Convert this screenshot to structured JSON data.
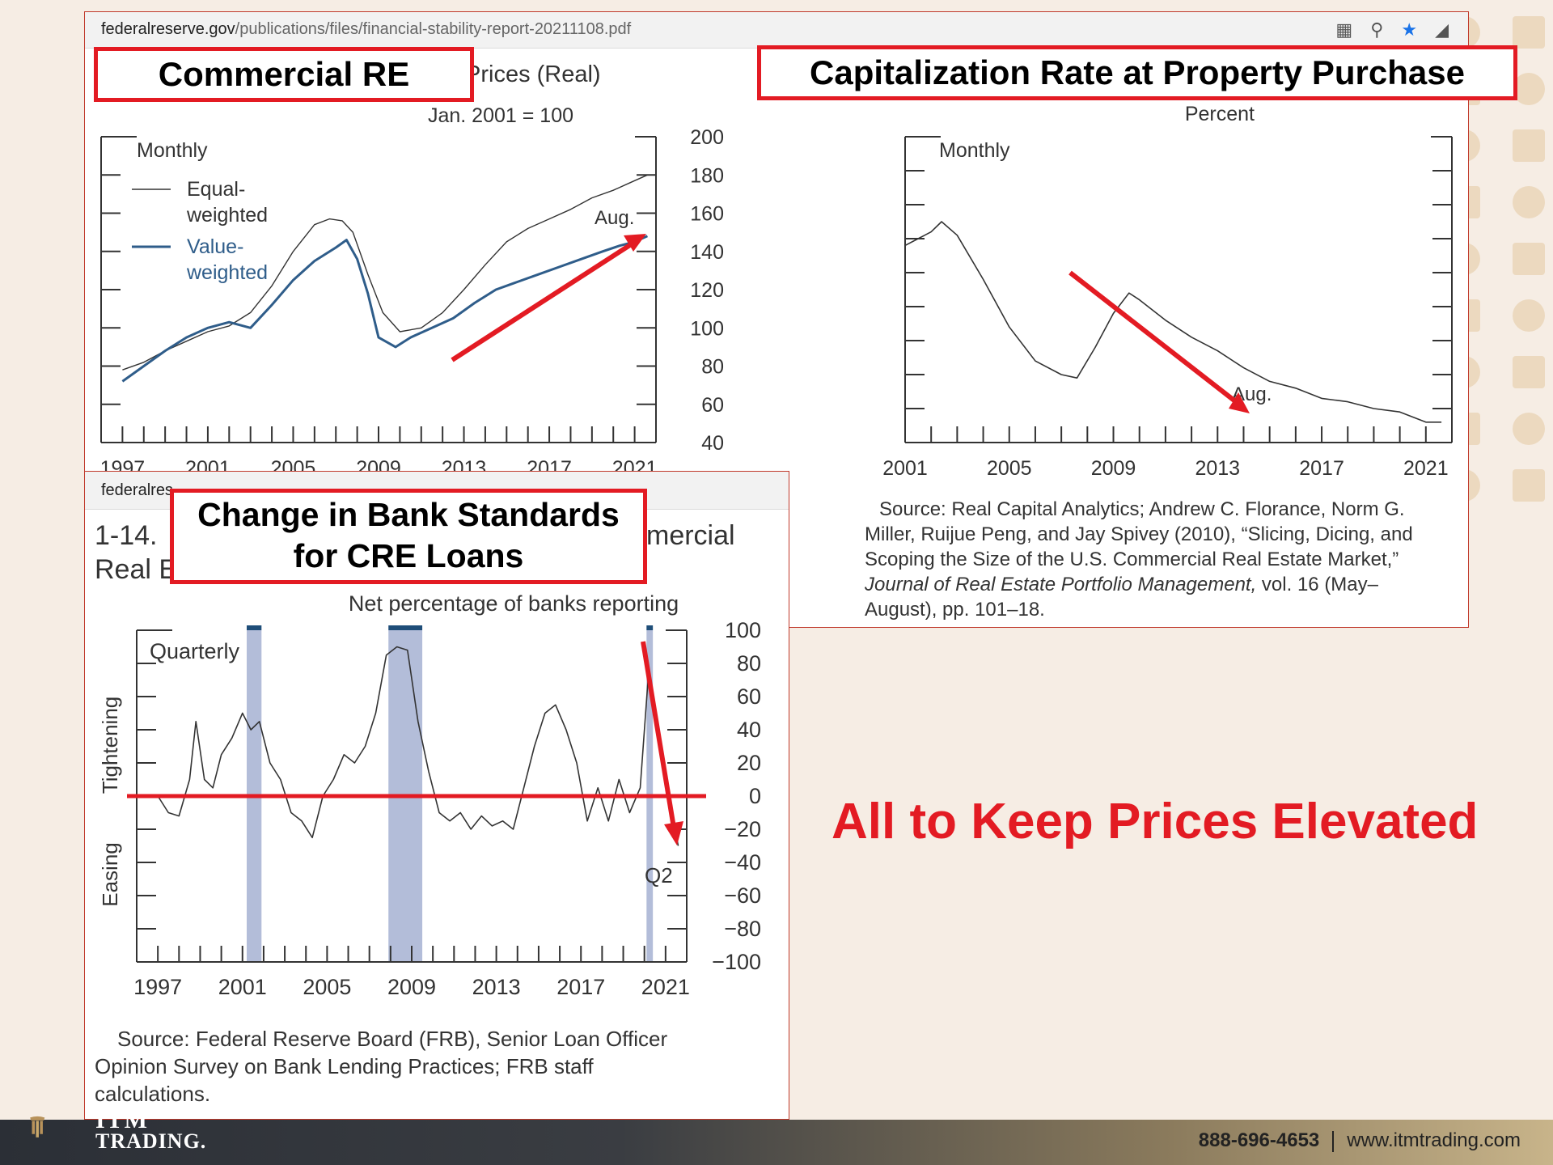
{
  "browser": {
    "url_domain": "federalreserve.gov",
    "url_path": "/publications/files/financial-stability-report-20211108.pdf",
    "url_truncated": "federalres"
  },
  "labels": {
    "commercial_re": "Commercial RE",
    "cap_rate": "Capitalization Rate at Property Purchase",
    "bank_standards_line1": "Change in Bank Standards",
    "bank_standards_line2": "for CRE Loans",
    "headline": "All to Keep Prices Elevated"
  },
  "panel1": {
    "title_fragment": "Prices (Real)",
    "unit": "Jan. 2001 = 100",
    "freq": "Monthly",
    "legend_equal": [
      "Equal-",
      "weighted"
    ],
    "legend_value": [
      "Value-",
      "weighted"
    ],
    "aug": "Aug."
  },
  "panel2": {
    "unit": "Percent",
    "freq": "Monthly",
    "aug": "Aug.",
    "source_lines": [
      "Source: Real Capital Analytics; Andrew C. Florance, Norm G.",
      "Miller, Ruijue Peng, and Jay Spivey (2010), “Slicing, Dicing, and",
      "Scoping the Size of the U.S. Commercial Real Estate Market,”"
    ],
    "source_italic": "Journal of Real Estate Portfolio Management,",
    "source_tail": " vol. 16 (May–",
    "source_last": "August), pp. 101–18."
  },
  "panel3": {
    "fig_prefix_1": "1-14.",
    "fig_prefix_2": "Real E",
    "fig_suffix": "mercial",
    "unit": "Net percentage of banks reporting",
    "freq": "Quarterly",
    "tightening": "Tightening",
    "easing": "Easing",
    "q2": "Q2",
    "source_lines": [
      "Source: Federal Reserve Board (FRB), Senior Loan Officer",
      "Opinion Survey on Bank Lending Practices; FRB staff",
      "calculations."
    ]
  },
  "footer": {
    "phone": "888-696-4653",
    "website": "www.itmtrading.com",
    "logo_top": "ITM",
    "logo_bottom": "TRADING."
  },
  "colors": {
    "accent_red": "#e31b23",
    "series_blue": "#2f5d8a",
    "recession_band": "#b3bdd9",
    "band_top": "#1f4e79"
  },
  "chart_data": [
    {
      "type": "line",
      "title": "Prices (Real)",
      "ylabel": "Jan. 2001 = 100",
      "xlim": [
        1996,
        2022
      ],
      "ylim": [
        40,
        200
      ],
      "x_ticks": [
        1997,
        2001,
        2005,
        2009,
        2013,
        2017,
        2021
      ],
      "y_ticks": [
        40,
        60,
        80,
        100,
        120,
        140,
        160,
        180,
        200
      ],
      "series": [
        {
          "name": "Equal-weighted",
          "x": [
            1997,
            1998,
            1999,
            2000,
            2001,
            2002,
            2003,
            2004,
            2005,
            2006,
            2006.7,
            2007.3,
            2007.8,
            2008.5,
            2009.2,
            2010,
            2011,
            2012,
            2013,
            2014,
            2015,
            2016,
            2017,
            2018,
            2019,
            2020,
            2020.8,
            2021.6
          ],
          "y": [
            78,
            82,
            88,
            93,
            98,
            101,
            108,
            122,
            140,
            154,
            157,
            156,
            150,
            128,
            108,
            98,
            100,
            108,
            120,
            133,
            145,
            152,
            157,
            162,
            168,
            172,
            176,
            180
          ]
        },
        {
          "name": "Value-weighted",
          "x": [
            1997,
            1998,
            1999,
            2000,
            2001,
            2002,
            2003,
            2004,
            2005,
            2006,
            2007,
            2007.5,
            2008,
            2008.5,
            2009,
            2009.8,
            2010.5,
            2011.5,
            2012.5,
            2013.5,
            2014.5,
            2015.5,
            2016.5,
            2017.5,
            2018.5,
            2019.5,
            2020.3,
            2021,
            2021.6
          ],
          "y": [
            72,
            80,
            88,
            95,
            100,
            103,
            100,
            112,
            125,
            135,
            142,
            146,
            136,
            118,
            95,
            90,
            95,
            100,
            105,
            113,
            120,
            124,
            128,
            132,
            136,
            140,
            143,
            145,
            148
          ]
        }
      ]
    },
    {
      "type": "line",
      "title": "Capitalization Rate at Property Purchase",
      "ylabel": "Percent",
      "xlim": [
        2001,
        2022
      ],
      "ylim": [
        5.5,
        10.0
      ],
      "x_ticks": [
        2001,
        2005,
        2009,
        2013,
        2017,
        2021
      ],
      "y_ticks": [
        5.5,
        6.0,
        6.5,
        7.0,
        7.5,
        8.0,
        8.5,
        9.0,
        9.5,
        10.0
      ],
      "series": [
        {
          "name": "",
          "x": [
            2001,
            2001.5,
            2002,
            2002.4,
            2003,
            2004,
            2005,
            2006,
            2007,
            2007.6,
            2008.3,
            2009,
            2009.6,
            2010,
            2011,
            2012,
            2013,
            2014,
            2015,
            2016,
            2017,
            2018,
            2019,
            2020,
            2021,
            2021.6
          ],
          "y": [
            8.4,
            8.5,
            8.6,
            8.75,
            8.55,
            7.9,
            7.2,
            6.7,
            6.5,
            6.45,
            6.9,
            7.4,
            7.7,
            7.6,
            7.3,
            7.05,
            6.85,
            6.6,
            6.4,
            6.3,
            6.15,
            6.1,
            6.0,
            5.95,
            5.8,
            5.8
          ]
        }
      ]
    },
    {
      "type": "line",
      "title": "",
      "ylabel": "Net percentage of banks reporting",
      "xlim": [
        1996,
        2022
      ],
      "ylim": [
        -100,
        100
      ],
      "x_ticks": [
        1997,
        2001,
        2005,
        2009,
        2013,
        2017,
        2021
      ],
      "y_ticks": [
        -100,
        -80,
        -60,
        -40,
        -20,
        0,
        20,
        40,
        60,
        80,
        100
      ],
      "recessions": [
        [
          2001.2,
          2001.9
        ],
        [
          2007.9,
          2009.5
        ],
        [
          2020.1,
          2020.4
        ]
      ],
      "series": [
        {
          "name": "",
          "x": [
            1997,
            1997.5,
            1998,
            1998.5,
            1998.8,
            1999.2,
            1999.6,
            2000,
            2000.5,
            2001,
            2001.4,
            2001.8,
            2002.3,
            2002.8,
            2003.3,
            2003.8,
            2004.3,
            2004.8,
            2005.3,
            2005.8,
            2006.3,
            2006.8,
            2007.3,
            2007.8,
            2008.3,
            2008.8,
            2009.3,
            2009.8,
            2010.3,
            2010.8,
            2011.3,
            2011.8,
            2012.3,
            2012.8,
            2013.3,
            2013.8,
            2014.3,
            2014.8,
            2015.3,
            2015.8,
            2016.3,
            2016.8,
            2017.3,
            2017.8,
            2018.3,
            2018.8,
            2019.3,
            2019.8,
            2020.2,
            2020.5,
            2020.9,
            2021.3,
            2021.6
          ],
          "y": [
            0,
            -10,
            -12,
            10,
            45,
            10,
            5,
            25,
            35,
            50,
            40,
            45,
            20,
            10,
            -10,
            -15,
            -25,
            0,
            10,
            25,
            20,
            30,
            50,
            85,
            90,
            88,
            45,
            15,
            -10,
            -15,
            -10,
            -20,
            -12,
            -18,
            -15,
            -20,
            5,
            30,
            50,
            55,
            40,
            20,
            -15,
            5,
            -15,
            10,
            -10,
            5,
            75,
            55,
            20,
            -10,
            -30
          ]
        }
      ]
    }
  ]
}
